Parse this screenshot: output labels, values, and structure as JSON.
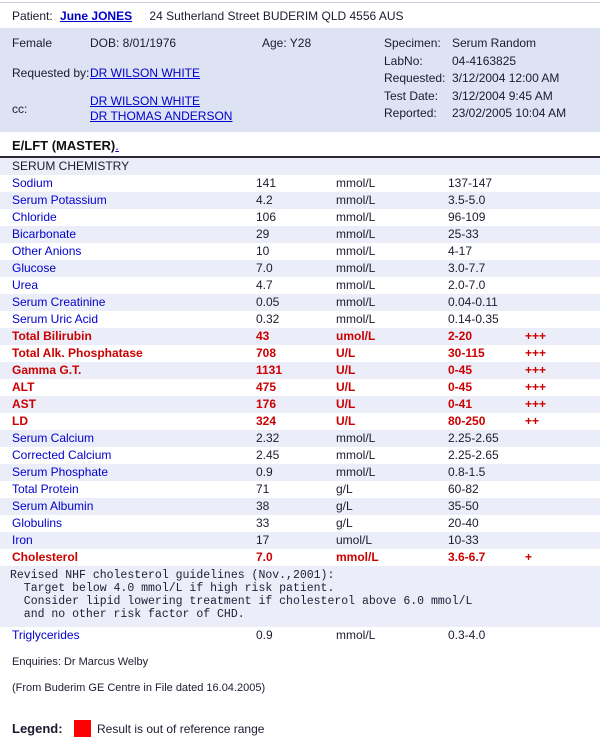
{
  "patient": {
    "label": "Patient:",
    "name": "June JONES",
    "address": "24 Sutherland Street BUDERIM QLD 4556 AUS"
  },
  "demographics": {
    "sex": "Female",
    "dob": "DOB: 8/01/1976",
    "age": "Age: Y28"
  },
  "requested_by": {
    "label": "Requested by:",
    "doctor": "DR WILSON WHITE"
  },
  "cc": {
    "label": "cc:",
    "doctors": [
      "DR WILSON WHITE",
      "DR THOMAS ANDERSON"
    ]
  },
  "specimen_info": [
    {
      "label": "Specimen:",
      "value": "Serum Random"
    },
    {
      "label": "LabNo:",
      "value": "04-4163825"
    },
    {
      "label": "Requested:",
      "value": "3/12/2004 12:00 AM"
    },
    {
      "label": "Test Date:",
      "value": "3/12/2004 9:45 AM"
    },
    {
      "label": "Reported:",
      "value": "23/02/2005 10:04 AM"
    }
  ],
  "section": {
    "title": "E/LFT (MASTER)",
    "title_link": "."
  },
  "table": {
    "group_header": "SERUM CHEMISTRY",
    "rows": [
      {
        "name": "Sodium",
        "value": "141",
        "units": "mmol/L",
        "range": "137-147",
        "flag": "",
        "abnormal": false
      },
      {
        "name": "Serum Potassium",
        "value": "4.2",
        "units": "mmol/L",
        "range": "3.5-5.0",
        "flag": "",
        "abnormal": false
      },
      {
        "name": "Chloride",
        "value": "106",
        "units": "mmol/L",
        "range": "96-109",
        "flag": "",
        "abnormal": false
      },
      {
        "name": "Bicarbonate",
        "value": "29",
        "units": "mmol/L",
        "range": "25-33",
        "flag": "",
        "abnormal": false
      },
      {
        "name": "Other Anions",
        "value": "10",
        "units": "mmol/L",
        "range": "4-17",
        "flag": "",
        "abnormal": false
      },
      {
        "name": "Glucose",
        "value": "7.0",
        "units": "mmol/L",
        "range": "3.0-7.7",
        "flag": "",
        "abnormal": false
      },
      {
        "name": "Urea",
        "value": "4.7",
        "units": "mmol/L",
        "range": "2.0-7.0",
        "flag": "",
        "abnormal": false
      },
      {
        "name": "Serum Creatinine",
        "value": "0.05",
        "units": "mmol/L",
        "range": "0.04-0.11",
        "flag": "",
        "abnormal": false
      },
      {
        "name": "Serum Uric Acid",
        "value": "0.32",
        "units": "mmol/L",
        "range": "0.14-0.35",
        "flag": "",
        "abnormal": false
      },
      {
        "name": "Total Bilirubin",
        "value": "43",
        "units": "umol/L",
        "range": "2-20",
        "flag": "+++",
        "abnormal": true
      },
      {
        "name": "Total Alk. Phosphatase",
        "value": "708",
        "units": "U/L",
        "range": "30-115",
        "flag": "+++",
        "abnormal": true
      },
      {
        "name": "Gamma G.T.",
        "value": "1131",
        "units": "U/L",
        "range": "0-45",
        "flag": "+++",
        "abnormal": true
      },
      {
        "name": "ALT",
        "value": "475",
        "units": "U/L",
        "range": "0-45",
        "flag": "+++",
        "abnormal": true
      },
      {
        "name": "AST",
        "value": "176",
        "units": "U/L",
        "range": "0-41",
        "flag": "+++",
        "abnormal": true
      },
      {
        "name": "LD",
        "value": "324",
        "units": "U/L",
        "range": "80-250",
        "flag": "++",
        "abnormal": true
      },
      {
        "name": "Serum Calcium",
        "value": "2.32",
        "units": "mmol/L",
        "range": "2.25-2.65",
        "flag": "",
        "abnormal": false
      },
      {
        "name": "Corrected Calcium",
        "value": "2.45",
        "units": "mmol/L",
        "range": "2.25-2.65",
        "flag": "",
        "abnormal": false
      },
      {
        "name": "Serum Phosphate",
        "value": "0.9",
        "units": "mmol/L",
        "range": "0.8-1.5",
        "flag": "",
        "abnormal": false
      },
      {
        "name": "Total Protein",
        "value": "71",
        "units": "g/L",
        "range": "60-82",
        "flag": "",
        "abnormal": false
      },
      {
        "name": "Serum Albumin",
        "value": "38",
        "units": "g/L",
        "range": "35-50",
        "flag": "",
        "abnormal": false
      },
      {
        "name": "Globulins",
        "value": "33",
        "units": "g/L",
        "range": "20-40",
        "flag": "",
        "abnormal": false
      },
      {
        "name": "Iron",
        "value": "17",
        "units": "umol/L",
        "range": "10-33",
        "flag": "",
        "abnormal": false
      },
      {
        "name": "Cholesterol",
        "value": "7.0",
        "units": "mmol/L",
        "range": "3.6-6.7",
        "flag": "+",
        "abnormal": true
      },
      {
        "comment": [
          "Revised NHF cholesterol guidelines (Nov.,2001):",
          "  Target below 4.0 mmol/L if high risk patient.",
          "  Consider lipid lowering treatment if cholesterol above 6.0 mmol/L",
          "  and no other risk factor of CHD."
        ]
      },
      {
        "name": "Triglycerides",
        "value": "0.9",
        "units": "mmol/L",
        "range": "0.3-4.0",
        "flag": "",
        "abnormal": false
      }
    ]
  },
  "footer": {
    "enquiries": "Enquiries: Dr Marcus Welby",
    "source": "(From Buderim GE Centre in File  dated 16.04.2005)"
  },
  "legend": {
    "label": "Legend:",
    "text": "Result is out of reference range"
  },
  "colors": {
    "panel_bg": "#dde3f2",
    "row_stripe": "#ebeef8",
    "link_blue": "#0000cc",
    "abnormal_red": "#cc0000",
    "legend_red": "#ff0000"
  }
}
